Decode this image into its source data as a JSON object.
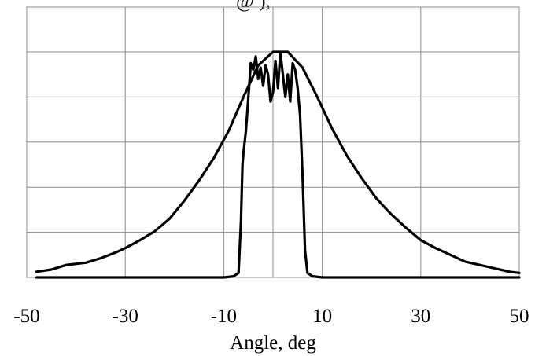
{
  "top_text": "@ ),",
  "chart_data": {
    "type": "line",
    "title": "",
    "xlabel": "Angle, deg",
    "ylabel": "",
    "xlim": [
      -50,
      50
    ],
    "ylim": [
      0,
      1
    ],
    "x_tick_labels": [
      "-50",
      "-30",
      "-10",
      "10",
      "30",
      "50"
    ],
    "x_ticks": [
      -50,
      -30,
      -10,
      10,
      30,
      50
    ],
    "x_gridlines": [
      -50,
      -30,
      -10,
      10,
      30,
      50
    ],
    "y_gridlines": [
      0.2,
      0.4,
      0.6,
      0.8,
      1.0
    ],
    "grid": true,
    "series": [
      {
        "x": [
          -48,
          -45,
          -42,
          -38,
          -35,
          -32,
          -30,
          -27,
          -24,
          -21,
          -18,
          -15,
          -12,
          -9,
          -6,
          -3,
          0,
          3,
          6,
          9,
          12,
          15,
          18,
          21,
          24,
          27,
          30,
          33,
          36,
          39,
          42,
          45,
          48,
          50
        ],
        "y": [
          0.025,
          0.035,
          0.055,
          0.065,
          0.085,
          0.11,
          0.13,
          0.165,
          0.205,
          0.26,
          0.34,
          0.43,
          0.53,
          0.65,
          0.8,
          0.94,
          1.0,
          1.0,
          0.93,
          0.8,
          0.66,
          0.54,
          0.44,
          0.35,
          0.28,
          0.22,
          0.165,
          0.13,
          0.1,
          0.07,
          0.055,
          0.04,
          0.025,
          0.02
        ]
      },
      {
        "x": [
          -48,
          -10,
          -8,
          -7,
          -6.5,
          -6.2,
          -6,
          -5.5,
          -5,
          -4.5,
          -4,
          -3.5,
          -3,
          -2.5,
          -2,
          -1.5,
          -1,
          -0.5,
          0,
          0.5,
          1,
          1.5,
          2,
          2.5,
          3,
          3.5,
          4,
          4.5,
          5,
          5.5,
          6,
          6.5,
          7,
          8,
          10,
          50
        ],
        "y": [
          0,
          0,
          0.005,
          0.02,
          0.25,
          0.5,
          0.55,
          0.65,
          0.8,
          0.95,
          0.92,
          0.98,
          0.88,
          0.93,
          0.85,
          0.94,
          0.9,
          0.78,
          0.82,
          0.96,
          0.84,
          1.0,
          0.9,
          0.8,
          0.9,
          0.78,
          0.95,
          0.92,
          0.84,
          0.72,
          0.45,
          0.12,
          0.02,
          0.005,
          0,
          0
        ]
      }
    ]
  }
}
